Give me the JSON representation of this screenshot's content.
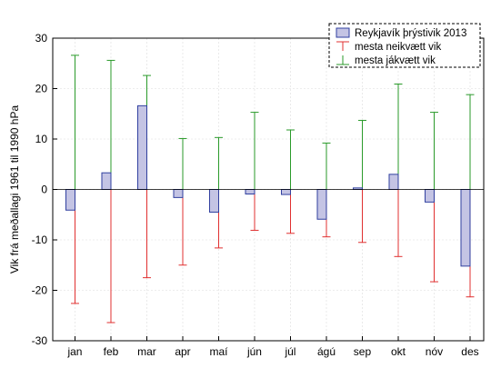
{
  "chart_data": {
    "type": "bar",
    "ylabel": "Vik frá meðallagi 1961 til 1990 hPa",
    "ylim": [
      -30,
      30
    ],
    "yticks": [
      -30,
      -20,
      -10,
      0,
      10,
      20,
      30
    ],
    "grid": true,
    "legend_placement": "top-right",
    "categories": [
      "jan",
      "feb",
      "mar",
      "apr",
      "maí",
      "jún",
      "júl",
      "ágú",
      "sep",
      "okt",
      "nóv",
      "des"
    ],
    "series": [
      {
        "name": "Reykjavík þrýstivik 2013",
        "kind": "bar",
        "color": "#3040a0",
        "fill": "#c4c4e4",
        "values": [
          -4.1,
          3.3,
          16.6,
          -1.6,
          -4.5,
          -0.9,
          -1.0,
          -5.9,
          0.3,
          3.0,
          -2.5,
          -15.2
        ]
      },
      {
        "name": "mesta neikvætt vik",
        "kind": "whisker",
        "color": "#e03030",
        "values": [
          -22.6,
          -26.4,
          -17.5,
          -15.0,
          -11.6,
          -8.1,
          -8.7,
          -9.4,
          -10.5,
          -13.3,
          -18.3,
          -21.3
        ]
      },
      {
        "name": "mesta jákvætt vik",
        "kind": "whisker",
        "color": "#2a9a2a",
        "values": [
          26.6,
          25.6,
          22.6,
          10.1,
          10.3,
          15.3,
          11.8,
          9.2,
          13.7,
          20.9,
          15.3,
          18.8
        ]
      }
    ]
  }
}
